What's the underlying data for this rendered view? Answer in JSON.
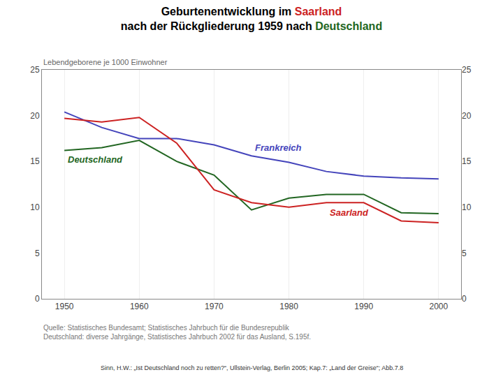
{
  "chart_data": {
    "type": "line",
    "title": "Geburtenentwicklung im Saarland\nnach der Rückgliederung 1959 nach Deutschland",
    "ylabel": "Lebendgeborene je 1000 Einwohner",
    "x": [
      1950,
      1955,
      1960,
      1965,
      1970,
      1975,
      1980,
      1985,
      1990,
      1995,
      2000
    ],
    "series": [
      {
        "name": "Frankreich",
        "color": "#4444bb",
        "values": [
          20.4,
          18.7,
          17.5,
          17.5,
          16.8,
          15.6,
          14.9,
          13.9,
          13.4,
          13.2,
          13.1
        ]
      },
      {
        "name": "Deutschland",
        "color": "#226622",
        "values": [
          16.2,
          16.5,
          17.3,
          15.0,
          13.5,
          9.7,
          11.0,
          11.4,
          11.4,
          9.4,
          9.3
        ]
      },
      {
        "name": "Saarland",
        "color": "#cc2222",
        "values": [
          19.7,
          19.3,
          19.8,
          17.0,
          11.9,
          10.5,
          10.0,
          10.5,
          10.5,
          8.5,
          8.3
        ]
      }
    ],
    "xlim": [
      1947,
      2003
    ],
    "ylim": [
      0,
      25
    ],
    "xticks": [
      1950,
      1960,
      1970,
      1980,
      1990,
      2000
    ],
    "yticks": [
      0,
      5,
      10,
      15,
      20,
      25
    ],
    "grid": "x",
    "annotations": [
      "Quelle: Statistisches Bundesamt; Statistisches Jahrbuch für die Bundesrepublik\nDeutschland: diverse Jahrgänge, Statistisches Jahrbuch 2002 für das Ausland, S.195f.",
      "Sinn, H.W.: „Ist Deutschland noch zu retten?“, Ullstein-Verlag, Berlin 2005; Kap.7: „Land der Greise“; Abb.7.8"
    ]
  }
}
